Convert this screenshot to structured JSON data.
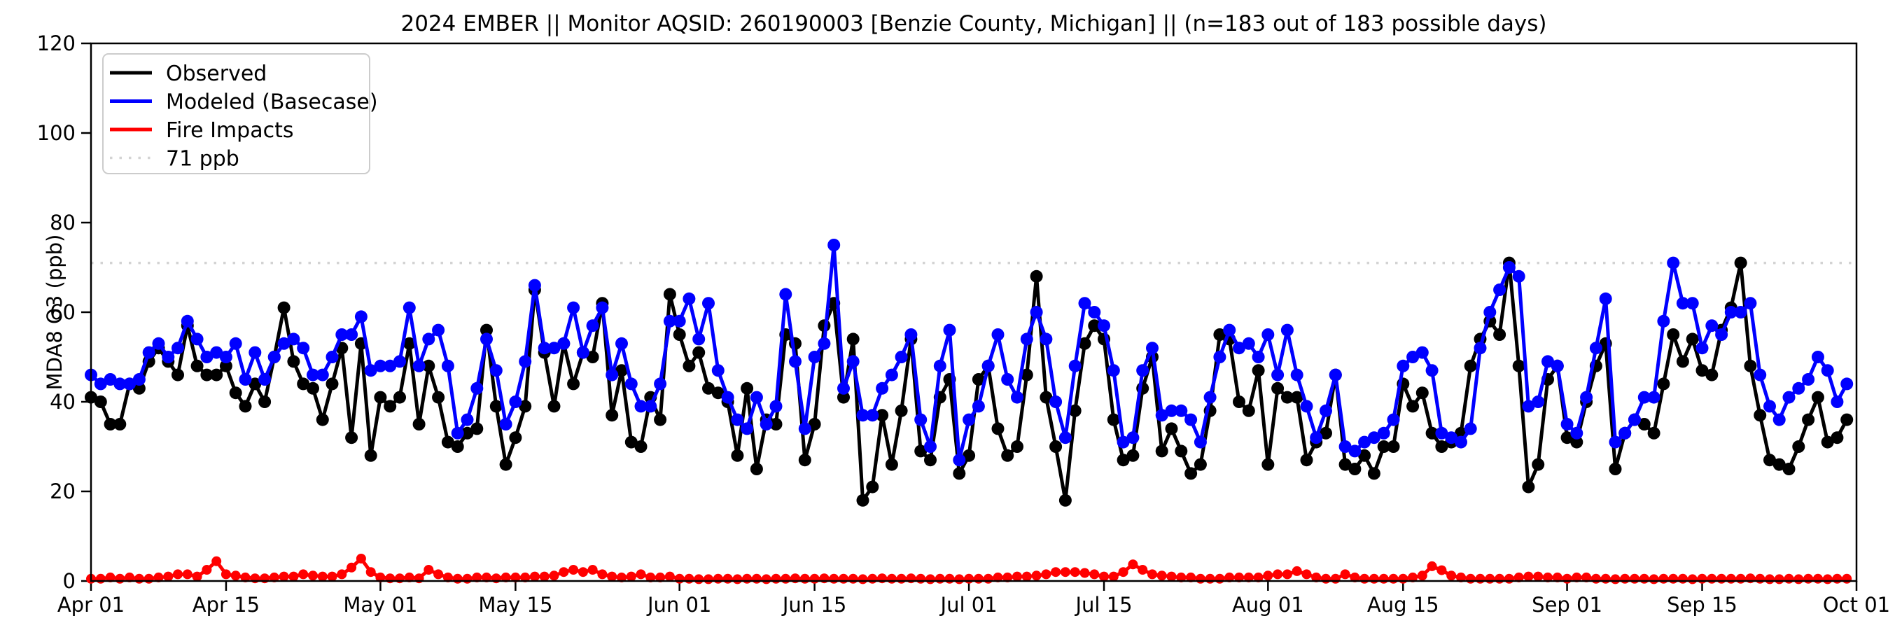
{
  "chart_data": {
    "type": "line",
    "title": "2024 EMBER || Monitor AQSID: 260190003 [Benzie County, Michigan] || (n=183 out of 183 possible days)",
    "xlabel": "",
    "ylabel": "MDA8 O3 (ppb)",
    "ylim": [
      0,
      120
    ],
    "y_ticks": [
      0,
      20,
      40,
      60,
      80,
      100,
      120
    ],
    "n_days": 183,
    "x_start_date": "Apr 01",
    "x_end_date": "Oct 01",
    "x_tick_days": [
      0,
      14,
      30,
      44,
      61,
      75,
      91,
      105,
      122,
      136,
      153,
      167,
      183
    ],
    "x_tick_labels": [
      "Apr 01",
      "Apr 15",
      "May 01",
      "May 15",
      "Jun 01",
      "Jun 15",
      "Jul 01",
      "Jul 15",
      "Aug 01",
      "Aug 15",
      "Sep 01",
      "Sep 15",
      "Oct 01"
    ],
    "grid": false,
    "legend_position": "upper left",
    "threshold": {
      "value": 71,
      "label": "71 ppb",
      "color": "#d3d3d3",
      "style": "dotted"
    },
    "legend": [
      {
        "label": "Observed",
        "color": "#000000",
        "dash": ""
      },
      {
        "label": "Modeled (Basecase)",
        "color": "#0000ff",
        "dash": ""
      },
      {
        "label": "Fire Impacts",
        "color": "#ff0000",
        "dash": ""
      },
      {
        "label": "71 ppb",
        "color": "#d3d3d3",
        "dash": "3.5 10"
      }
    ],
    "series": [
      {
        "name": "Observed",
        "color": "#000000",
        "line_width": 5,
        "marker_r": 9,
        "values": [
          41,
          40,
          35,
          35,
          44,
          43,
          49,
          52,
          49,
          46,
          57,
          48,
          46,
          46,
          48,
          42,
          39,
          44,
          40,
          50,
          61,
          49,
          44,
          43,
          36,
          44,
          52,
          32,
          53,
          28,
          41,
          39,
          41,
          53,
          35,
          48,
          41,
          31,
          30,
          33,
          34,
          56,
          39,
          26,
          32,
          39,
          65,
          51,
          39,
          53,
          44,
          51,
          50,
          62,
          37,
          47,
          31,
          30,
          41,
          36,
          64,
          55,
          48,
          51,
          43,
          42,
          40,
          28,
          43,
          25,
          36,
          35,
          55,
          53,
          27,
          35,
          57,
          62,
          41,
          54,
          18,
          21,
          37,
          26,
          38,
          54,
          29,
          27,
          41,
          45,
          24,
          28,
          45,
          48,
          34,
          28,
          30,
          46,
          68,
          41,
          30,
          18,
          38,
          53,
          57,
          54,
          36,
          27,
          28,
          43,
          50,
          29,
          34,
          29,
          24,
          26,
          38,
          55,
          54,
          40,
          38,
          47,
          26,
          43,
          41,
          41,
          27,
          31,
          33,
          46,
          26,
          25,
          28,
          24,
          30,
          30,
          44,
          39,
          42,
          33,
          30,
          31,
          33,
          48,
          54,
          58,
          55,
          71,
          48,
          21,
          26,
          45,
          48,
          32,
          31,
          40,
          48,
          53,
          25,
          33,
          36,
          35,
          33,
          44,
          55,
          49,
          54,
          47,
          46,
          56,
          61,
          71,
          48,
          37,
          27,
          26,
          25,
          30,
          36,
          41,
          31,
          32,
          36
        ]
      },
      {
        "name": "Modeled (Basecase)",
        "color": "#0000ff",
        "line_width": 5,
        "marker_r": 9,
        "values": [
          46,
          44,
          45,
          44,
          44,
          45,
          51,
          53,
          50,
          52,
          58,
          54,
          50,
          51,
          50,
          53,
          45,
          51,
          45,
          50,
          53,
          54,
          52,
          46,
          46,
          50,
          55,
          55,
          59,
          47,
          48,
          48,
          49,
          61,
          48,
          54,
          56,
          48,
          33,
          36,
          43,
          54,
          47,
          35,
          40,
          49,
          66,
          52,
          52,
          53,
          61,
          51,
          57,
          61,
          46,
          53,
          44,
          39,
          39,
          44,
          58,
          58,
          63,
          54,
          62,
          47,
          41,
          36,
          34,
          41,
          35,
          39,
          64,
          49,
          34,
          50,
          53,
          75,
          43,
          49,
          37,
          37,
          43,
          46,
          50,
          55,
          36,
          30,
          48,
          56,
          27,
          36,
          39,
          48,
          55,
          45,
          41,
          54,
          60,
          54,
          40,
          32,
          48,
          62,
          60,
          57,
          47,
          31,
          32,
          47,
          52,
          37,
          38,
          38,
          36,
          31,
          41,
          50,
          56,
          52,
          53,
          50,
          55,
          46,
          56,
          46,
          39,
          32,
          38,
          46,
          30,
          29,
          31,
          32,
          33,
          36,
          48,
          50,
          51,
          47,
          33,
          32,
          31,
          34,
          52,
          60,
          65,
          70,
          68,
          39,
          40,
          49,
          48,
          35,
          33,
          41,
          52,
          63,
          31,
          33,
          36,
          41,
          41,
          58,
          71,
          62,
          62,
          52,
          57,
          55,
          60,
          60,
          62,
          46,
          39,
          36,
          41,
          43,
          45,
          50,
          47,
          40,
          44
        ]
      },
      {
        "name": "Fire Impacts",
        "color": "#ff0000",
        "line_width": 5,
        "marker_r": 7,
        "values": [
          0.5,
          0.5,
          0.8,
          0.5,
          0.8,
          0.5,
          0.5,
          0.8,
          1,
          1.5,
          1.5,
          1,
          2.5,
          4.4,
          1.5,
          1.2,
          0.8,
          0.6,
          0.6,
          0.8,
          1,
          1,
          1.5,
          1.2,
          1,
          1,
          1.5,
          3,
          5,
          2,
          0.8,
          0.6,
          0.6,
          0.8,
          0.6,
          2.5,
          1.5,
          0.8,
          0.5,
          0.5,
          0.8,
          0.8,
          0.6,
          0.8,
          0.8,
          0.8,
          1,
          1,
          1.2,
          2,
          2.5,
          2,
          2.5,
          1.5,
          1,
          0.8,
          1,
          1.5,
          0.8,
          0.8,
          1,
          0.5,
          0.5,
          0.4,
          0.4,
          0.5,
          0.5,
          0.4,
          0.5,
          0.5,
          0.4,
          0.5,
          0.5,
          0.6,
          0.5,
          0.5,
          0.6,
          0.5,
          0.5,
          0.5,
          0.4,
          0.5,
          0.6,
          0.5,
          0.5,
          0.6,
          0.5,
          0.4,
          0.5,
          0.5,
          0.4,
          0.5,
          0.5,
          0.5,
          0.8,
          0.8,
          1,
          1,
          1.2,
          1.5,
          2,
          2,
          2,
          1.8,
          1.5,
          1,
          1,
          2,
          3.7,
          2.5,
          1.5,
          1.2,
          1,
          0.8,
          0.8,
          0.5,
          0.5,
          0.5,
          0.8,
          0.8,
          0.8,
          0.8,
          1.2,
          1.5,
          1.5,
          2.2,
          1.5,
          0.8,
          0.5,
          0.5,
          1.5,
          0.8,
          0.5,
          0.5,
          0.5,
          0.5,
          0.5,
          0.8,
          1.2,
          3.3,
          2.4,
          1.2,
          0.8,
          0.5,
          0.5,
          0.5,
          0.5,
          0.5,
          0.8,
          1,
          1,
          0.8,
          0.8,
          0.5,
          0.8,
          0.8,
          0.5,
          0.5,
          0.4,
          0.5,
          0.5,
          0.5,
          0.4,
          0.5,
          0.5,
          0.5,
          0.4,
          0.5,
          0.5,
          0.5,
          0.5,
          0.5,
          0.6,
          0.5,
          0.4,
          0.4,
          0.5,
          0.4,
          0.5,
          0.5,
          0.4,
          0.5,
          0.5
        ]
      }
    ]
  }
}
